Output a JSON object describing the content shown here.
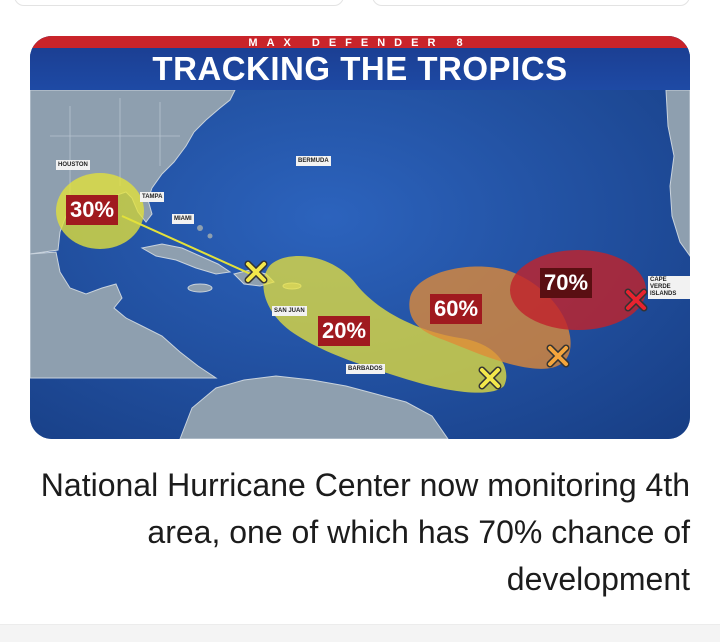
{
  "banner": {
    "subtitle": "MAX DEFENDER 8",
    "title": "TRACKING THE TROPICS"
  },
  "places": {
    "houston": "HOUSTON",
    "tampa": "TAMPA",
    "miami": "MIAMI",
    "bermuda": "BERMUDA",
    "san_juan": "SAN JUAN",
    "barbados": "BARBADOS",
    "cape_verde": "CAPE VERDE ISLANDS"
  },
  "areas": {
    "gulf": {
      "chance": "30%",
      "color": "#e3e13a"
    },
    "caribbean": {
      "chance": "20%",
      "color": "#e9e33b"
    },
    "central_atlantic": {
      "chance": "60%",
      "color": "#e08a37"
    },
    "east_atlantic": {
      "chance": "70%",
      "color": "#c0232c"
    }
  },
  "headline": "National Hurricane Center now monitoring 4th area, one of which has 70% chance of development"
}
